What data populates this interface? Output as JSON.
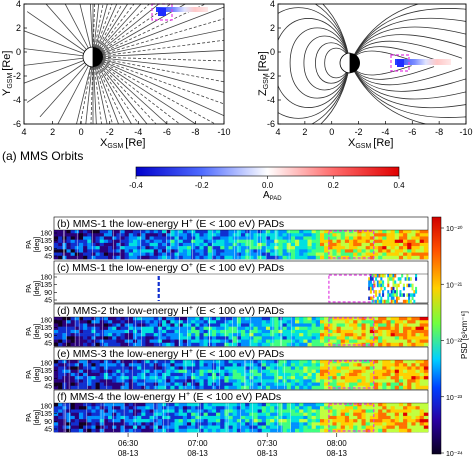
{
  "figure_label": "(a) MMS Orbits",
  "orbit_panels": [
    {
      "ylabel_main": "Y",
      "ylabel_sub": "GSM",
      "ylabel_unit": "[Re]",
      "xlabel_main": "X",
      "xlabel_sub": "GSM",
      "xlabel_unit": "[Re]",
      "x_ticks": [
        "4",
        "2",
        "0",
        "-2",
        "-4",
        "-6",
        "-8",
        "-10"
      ],
      "y_ticks": [
        "4",
        "2",
        "0",
        "-2",
        "-4",
        "-6"
      ]
    },
    {
      "ylabel_main": "Z",
      "ylabel_sub": "GSM",
      "ylabel_unit": "[Re]",
      "xlabel_main": "X",
      "xlabel_sub": "GSM",
      "xlabel_unit": "[Re]",
      "x_ticks": [
        "4",
        "2",
        "0",
        "-2",
        "-4",
        "-6",
        "-8",
        "-10"
      ],
      "y_ticks": [
        "4",
        "2",
        "0",
        "-2",
        "-4",
        "-6"
      ]
    }
  ],
  "colorbar_top": {
    "label_main": "A",
    "label_sub": "PAD",
    "ticks": [
      "-0.4",
      "-0.2",
      "0.0",
      "0.2",
      "0.4"
    ],
    "colors": [
      "#0000cc",
      "#4f6bff",
      "#ffffff",
      "#ff6b6b",
      "#e00000"
    ]
  },
  "spectrograms": [
    {
      "title": "(b) MMS-1 the low-energy H",
      "ion": "+",
      "range": " (E < 100 eV) PADs",
      "fill": "dense"
    },
    {
      "title": "(c) MMS-1 the low-energy O",
      "ion": "+",
      "range": " (E < 100 eV) PADs",
      "fill": "sparse"
    },
    {
      "title": "(d) MMS-2 the low-energy H",
      "ion": "+",
      "range": " (E < 100 eV) PADs",
      "fill": "dense"
    },
    {
      "title": "(e) MMS-3 the low-energy H",
      "ion": "+",
      "range": " (E < 100 eV) PADs",
      "fill": "dense"
    },
    {
      "title": "(f) MMS-4 the low-energy H",
      "ion": "+",
      "range": " (E < 100 eV) PADs",
      "fill": "dense"
    }
  ],
  "pa_axis": {
    "label_main": "PA",
    "label_unit": "[deg]",
    "ticks": [
      "180",
      "135",
      "90",
      "45"
    ]
  },
  "time_axis": [
    {
      "time": "06:30",
      "date": "08-13"
    },
    {
      "time": "07:00",
      "date": "08-13"
    },
    {
      "time": "07:30",
      "date": "08-13"
    },
    {
      "time": "08:00",
      "date": "08-13"
    }
  ],
  "colorbar_right": {
    "label": "PSD [s³cm⁻⁶]",
    "ticks": [
      "10⁻²⁰",
      "10⁻²¹",
      "10⁻²²",
      "10⁻²³",
      "10⁻²⁴"
    ],
    "colors": [
      "#d00000",
      "#ff5000",
      "#ffd000",
      "#70ff40",
      "#00d0ff",
      "#0040ff",
      "#2a00a0",
      "#0a0020"
    ]
  },
  "chart_data": [
    {
      "type": "heatmap",
      "title": "(b) MMS-1 the low-energy H+ (E < 100 eV) PADs",
      "ylabel": "PA [deg]",
      "ylim": [
        0,
        180
      ],
      "x_ticks": [
        "06:30 08-13",
        "07:00 08-13",
        "07:30 08-13",
        "08:00 08-13"
      ],
      "y_ticks": [
        180,
        135,
        90,
        45
      ],
      "colorbar": "PSD [s³cm⁻⁶]",
      "color_range": [
        "10⁻²⁴",
        "10⁻²⁰"
      ]
    },
    {
      "type": "heatmap",
      "title": "(c) MMS-1 the low-energy O+ (E < 100 eV) PADs",
      "ylabel": "PA [deg]",
      "ylim": [
        0,
        180
      ],
      "x_ticks": [
        "06:30 08-13",
        "07:00 08-13",
        "07:30 08-13",
        "08:00 08-13"
      ],
      "y_ticks": [
        180,
        135,
        90,
        45
      ]
    },
    {
      "type": "heatmap",
      "title": "(d) MMS-2 the low-energy H+ (E < 100 eV) PADs",
      "ylabel": "PA [deg]",
      "ylim": [
        0,
        180
      ],
      "y_ticks": [
        180,
        135,
        90,
        45
      ]
    },
    {
      "type": "heatmap",
      "title": "(e) MMS-3 the low-energy H+ (E < 100 eV) PADs",
      "ylabel": "PA [deg]",
      "ylim": [
        0,
        180
      ],
      "y_ticks": [
        180,
        135,
        90,
        45
      ]
    },
    {
      "type": "heatmap",
      "title": "(f) MMS-4 the low-energy H+ (E < 100 eV) PADs",
      "ylabel": "PA [deg]",
      "ylim": [
        0,
        180
      ],
      "y_ticks": [
        180,
        135,
        90,
        45
      ]
    },
    {
      "type": "line",
      "title": "",
      "xlabel": "X GSM [Re]",
      "ylabel": "Y GSM [Re]",
      "xlim": [
        4,
        -10
      ],
      "ylim": [
        -6,
        4
      ]
    },
    {
      "type": "line",
      "title": "",
      "xlabel": "X GSM [Re]",
      "ylabel": "Z GSM [Re]",
      "xlim": [
        4,
        -10
      ],
      "ylim": [
        -6,
        4
      ]
    }
  ]
}
